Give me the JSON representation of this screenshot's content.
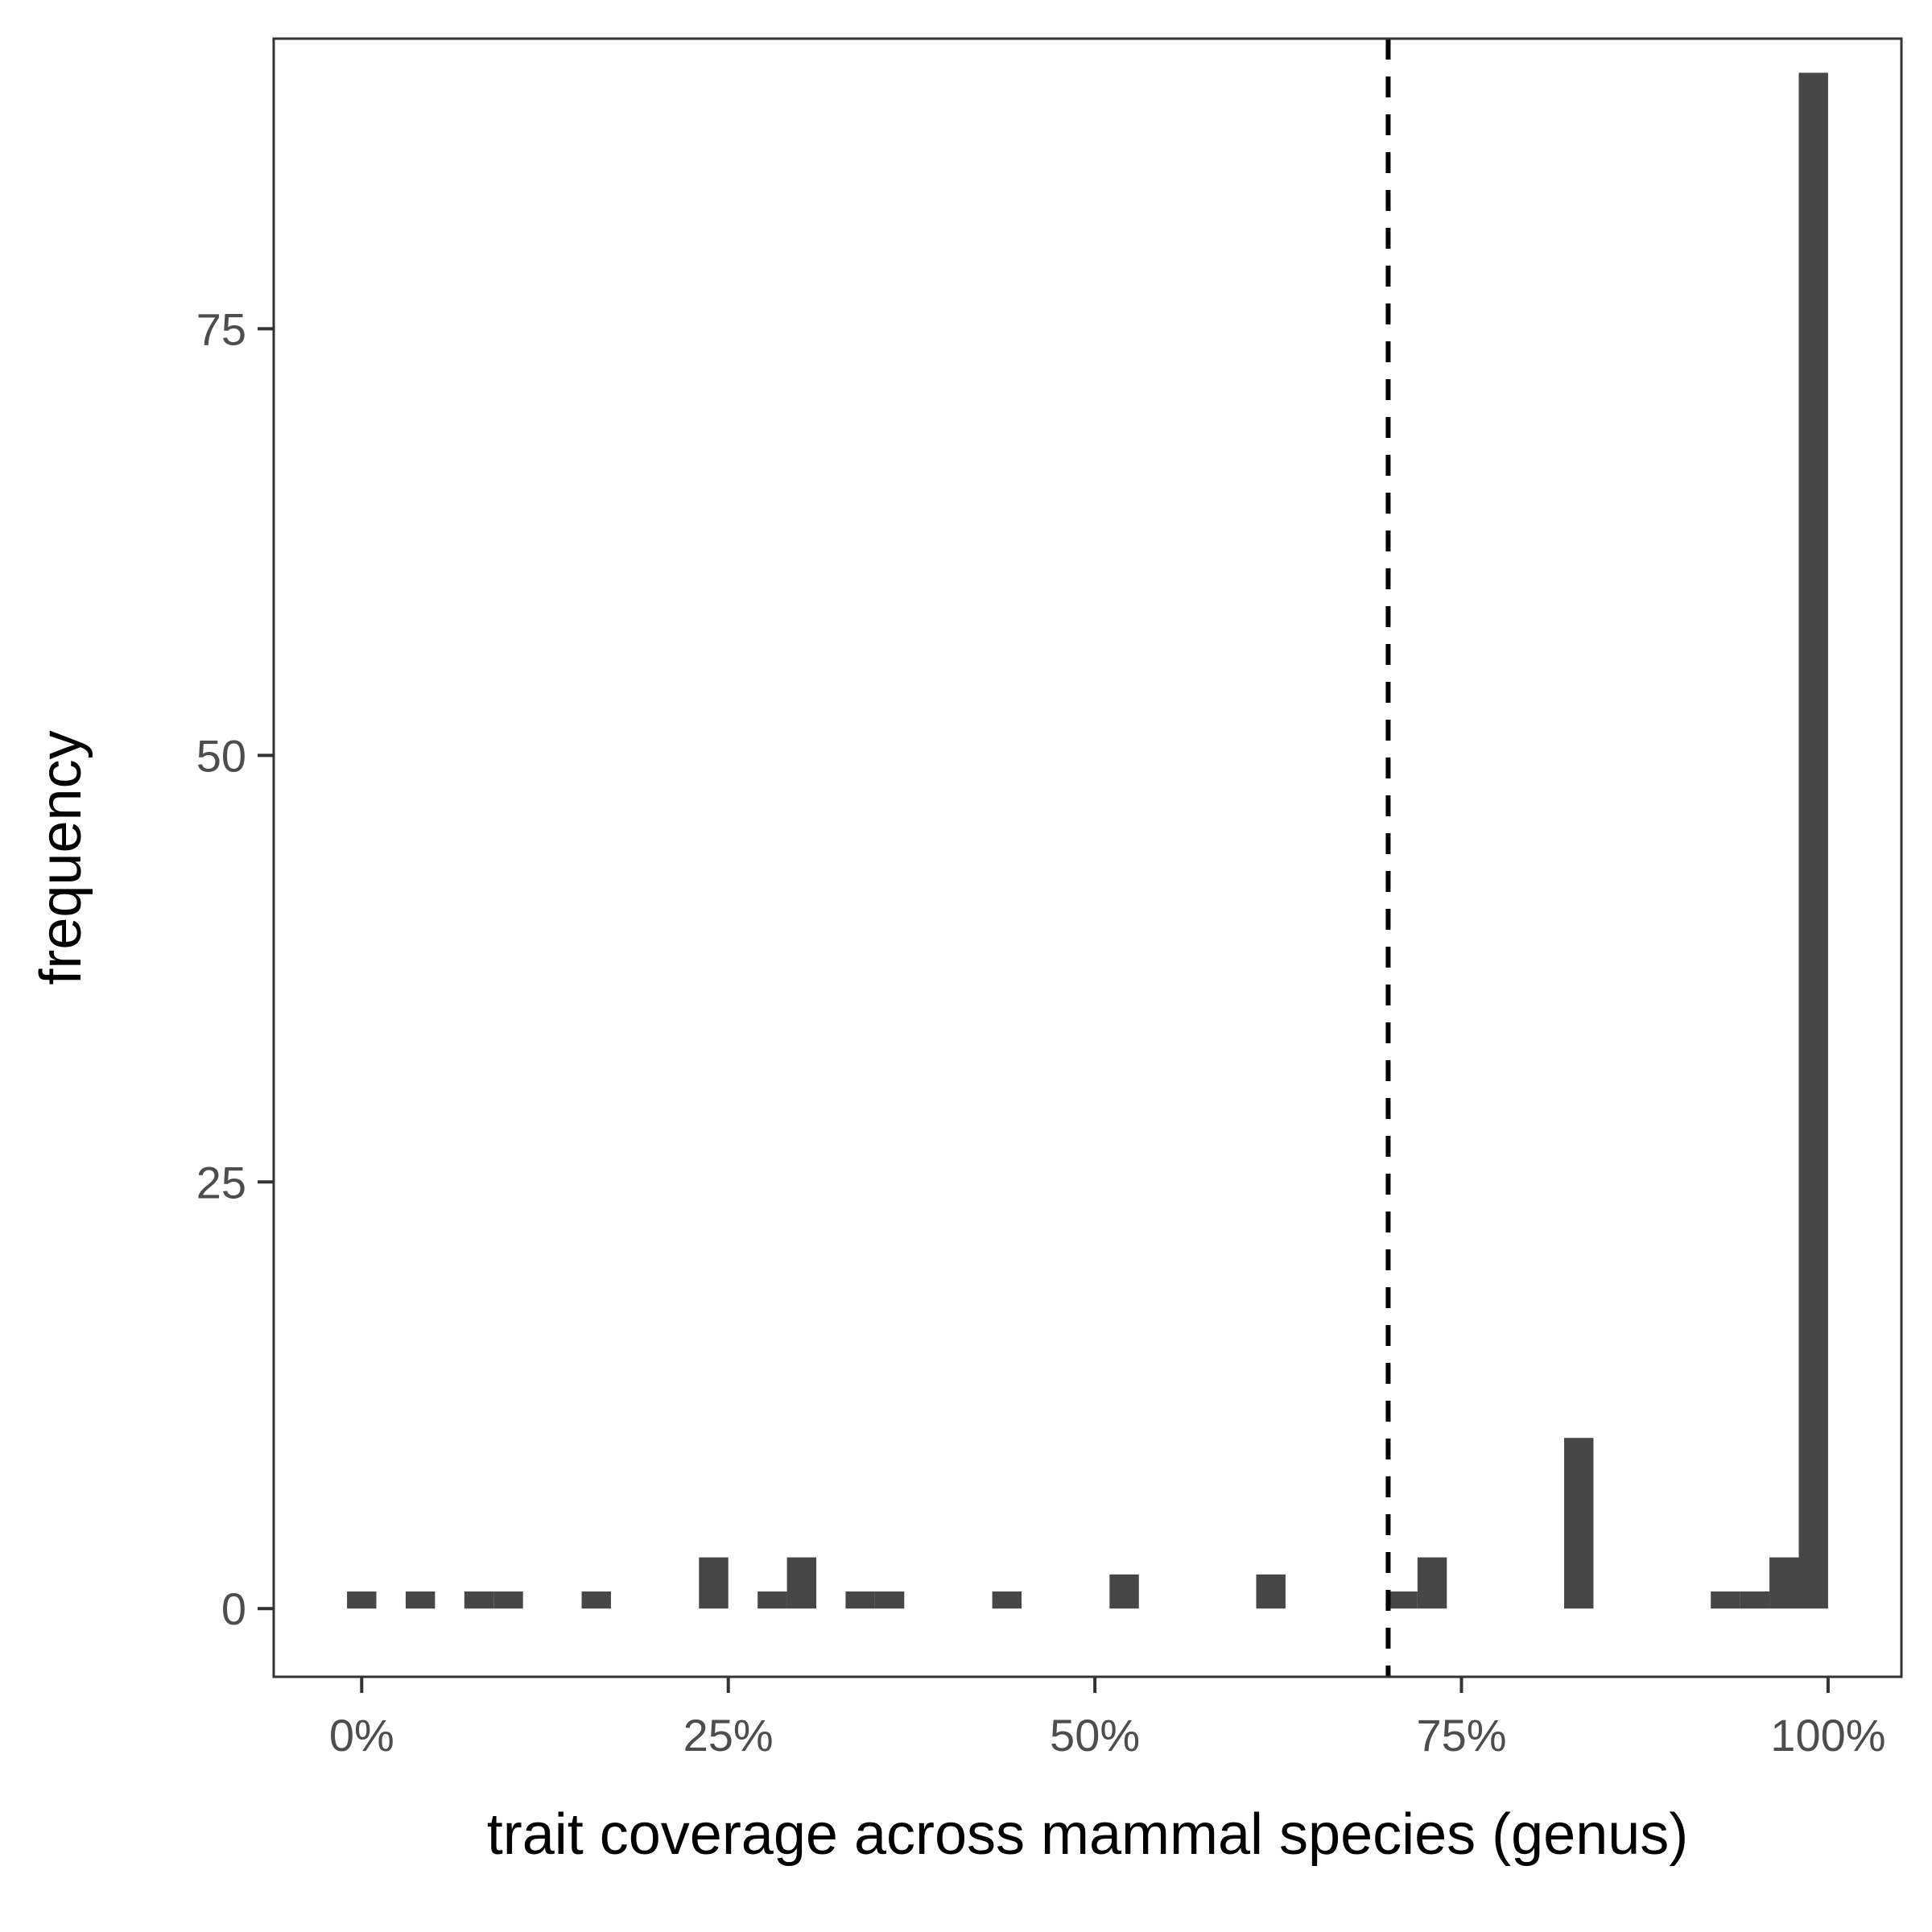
{
  "chart_data": {
    "type": "bar",
    "xlabel": "trait coverage across mammal species (genus)",
    "ylabel": "frequency",
    "xlim": [
      -6,
      105
    ],
    "ylim": [
      -4,
      92
    ],
    "bin_width": 2,
    "x_ticks": [
      {
        "value": 0,
        "label": "0%"
      },
      {
        "value": 25,
        "label": "25%"
      },
      {
        "value": 50,
        "label": "50%"
      },
      {
        "value": 75,
        "label": "75%"
      },
      {
        "value": 100,
        "label": "100%"
      }
    ],
    "y_ticks": [
      {
        "value": 0,
        "label": "0"
      },
      {
        "value": 25,
        "label": "25"
      },
      {
        "value": 50,
        "label": "50"
      },
      {
        "value": 75,
        "label": "75"
      }
    ],
    "bins": [
      {
        "x": 0,
        "count": 1
      },
      {
        "x": 4,
        "count": 1
      },
      {
        "x": 8,
        "count": 1
      },
      {
        "x": 10,
        "count": 1
      },
      {
        "x": 16,
        "count": 1
      },
      {
        "x": 24,
        "count": 3
      },
      {
        "x": 28,
        "count": 1
      },
      {
        "x": 30,
        "count": 3
      },
      {
        "x": 34,
        "count": 1
      },
      {
        "x": 36,
        "count": 1
      },
      {
        "x": 44,
        "count": 1
      },
      {
        "x": 52,
        "count": 2
      },
      {
        "x": 62,
        "count": 2
      },
      {
        "x": 71,
        "count": 1
      },
      {
        "x": 73,
        "count": 3
      },
      {
        "x": 83,
        "count": 10
      },
      {
        "x": 93,
        "count": 1
      },
      {
        "x": 95,
        "count": 1
      },
      {
        "x": 97,
        "count": 3
      },
      {
        "x": 99,
        "count": 90
      }
    ],
    "vline": {
      "x": 70,
      "style": "dashed"
    },
    "grid": false,
    "colors": {
      "bar": "#474747",
      "axis": "#333333",
      "vline": "#000000"
    }
  }
}
